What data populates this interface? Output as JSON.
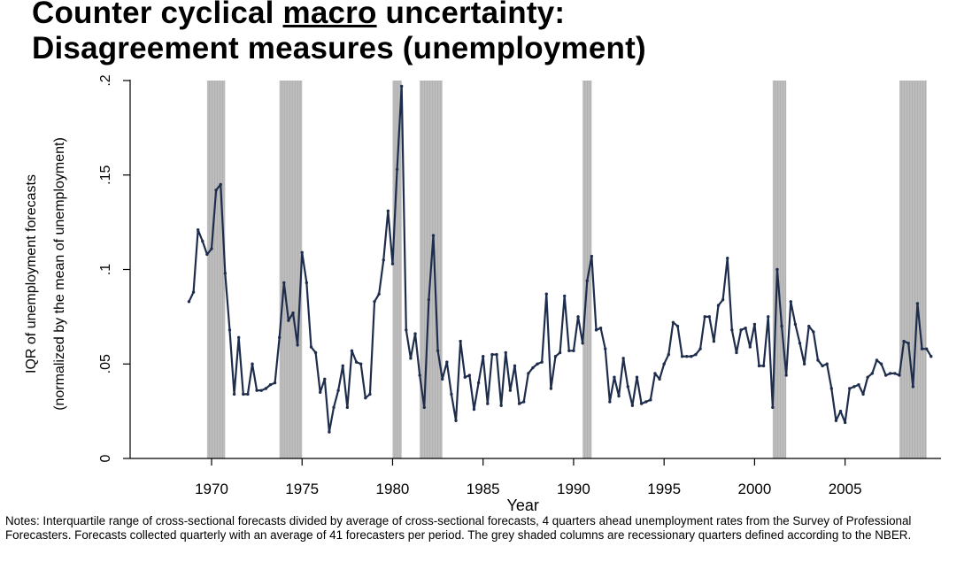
{
  "title": {
    "line1_before": "Counter cyclical ",
    "line1_underlined": "macro",
    "line1_after": " uncertainty:",
    "line2": "Disagreement measures (unemployment)"
  },
  "notes": "Notes: Interquartile range of cross-sectional forecasts divided by average of cross-sectional forecasts, 4 quarters ahead unemployment rates from the Survey of Professional Forecasters. Forecasts collected quarterly with an average of 41 forecasters per period. The grey shaded columns are recessionary quarters defined according to the NBER.",
  "chart_data": {
    "type": "line",
    "xlabel": "Year",
    "ylabel_line1": "IQR of unemployment forecasts",
    "ylabel_line2": "(normalized by the mean of unemployment)",
    "xlim": [
      1965.5,
      2010.3
    ],
    "ylim": [
      0,
      0.2
    ],
    "x_ticks": [
      1970,
      1975,
      1980,
      1985,
      1990,
      1995,
      2000,
      2005
    ],
    "x_tick_labels": [
      "1970",
      "1975",
      "1980",
      "1985",
      "1990",
      "1995",
      "2000",
      "2005"
    ],
    "y_ticks": [
      0,
      0.05,
      0.1,
      0.15,
      0.2
    ],
    "y_tick_labels": [
      "0",
      ".05",
      ".1",
      ".15",
      ".2"
    ],
    "grid": false,
    "line_color": "#1f2d4d",
    "shade_color": "#bdbdbd",
    "recessions": [
      [
        1969.75,
        1970.75
      ],
      [
        1973.75,
        1975.0
      ],
      [
        1980.0,
        1980.5
      ],
      [
        1981.5,
        1982.75
      ],
      [
        1990.5,
        1991.0
      ],
      [
        2001.0,
        2001.75
      ],
      [
        2008.0,
        2009.5
      ]
    ],
    "series": [
      {
        "points": [
          [
            1968.75,
            0.083
          ],
          [
            1969.0,
            0.088
          ],
          [
            1969.25,
            0.121
          ],
          [
            1969.5,
            0.115
          ],
          [
            1969.75,
            0.108
          ],
          [
            1970.0,
            0.111
          ],
          [
            1970.25,
            0.142
          ],
          [
            1970.5,
            0.145
          ],
          [
            1970.75,
            0.098
          ],
          [
            1971.0,
            0.068
          ],
          [
            1971.25,
            0.034
          ],
          [
            1971.5,
            0.064
          ],
          [
            1971.75,
            0.034
          ],
          [
            1972.0,
            0.034
          ],
          [
            1972.25,
            0.05
          ],
          [
            1972.5,
            0.036
          ],
          [
            1972.75,
            0.036
          ],
          [
            1973.0,
            0.037
          ],
          [
            1973.25,
            0.039
          ],
          [
            1973.5,
            0.04
          ],
          [
            1973.75,
            0.064
          ],
          [
            1974.0,
            0.093
          ],
          [
            1974.25,
            0.073
          ],
          [
            1974.5,
            0.077
          ],
          [
            1974.75,
            0.06
          ],
          [
            1975.0,
            0.109
          ],
          [
            1975.25,
            0.093
          ],
          [
            1975.5,
            0.059
          ],
          [
            1975.75,
            0.056
          ],
          [
            1976.0,
            0.035
          ],
          [
            1976.25,
            0.042
          ],
          [
            1976.5,
            0.014
          ],
          [
            1976.75,
            0.027
          ],
          [
            1977.0,
            0.036
          ],
          [
            1977.25,
            0.049
          ],
          [
            1977.5,
            0.027
          ],
          [
            1977.75,
            0.057
          ],
          [
            1978.0,
            0.051
          ],
          [
            1978.25,
            0.05
          ],
          [
            1978.5,
            0.032
          ],
          [
            1978.75,
            0.034
          ],
          [
            1979.0,
            0.083
          ],
          [
            1979.25,
            0.087
          ],
          [
            1979.5,
            0.105
          ],
          [
            1979.75,
            0.131
          ],
          [
            1980.0,
            0.103
          ],
          [
            1980.25,
            0.153
          ],
          [
            1980.5,
            0.197
          ],
          [
            1980.75,
            0.068
          ],
          [
            1981.0,
            0.053
          ],
          [
            1981.25,
            0.066
          ],
          [
            1981.5,
            0.044
          ],
          [
            1981.75,
            0.027
          ],
          [
            1982.0,
            0.084
          ],
          [
            1982.25,
            0.118
          ],
          [
            1982.5,
            0.057
          ],
          [
            1982.75,
            0.042
          ],
          [
            1983.0,
            0.051
          ],
          [
            1983.25,
            0.034
          ],
          [
            1983.5,
            0.02
          ],
          [
            1983.75,
            0.062
          ],
          [
            1984.0,
            0.043
          ],
          [
            1984.25,
            0.044
          ],
          [
            1984.5,
            0.026
          ],
          [
            1984.75,
            0.04
          ],
          [
            1985.0,
            0.054
          ],
          [
            1985.25,
            0.029
          ],
          [
            1985.5,
            0.055
          ],
          [
            1985.75,
            0.055
          ],
          [
            1986.0,
            0.028
          ],
          [
            1986.25,
            0.056
          ],
          [
            1986.5,
            0.036
          ],
          [
            1986.75,
            0.049
          ],
          [
            1987.0,
            0.029
          ],
          [
            1987.25,
            0.03
          ],
          [
            1987.5,
            0.045
          ],
          [
            1987.75,
            0.048
          ],
          [
            1988.0,
            0.05
          ],
          [
            1988.25,
            0.051
          ],
          [
            1988.5,
            0.087
          ],
          [
            1988.75,
            0.037
          ],
          [
            1989.0,
            0.054
          ],
          [
            1989.25,
            0.056
          ],
          [
            1989.5,
            0.086
          ],
          [
            1989.75,
            0.057
          ],
          [
            1990.0,
            0.057
          ],
          [
            1990.25,
            0.075
          ],
          [
            1990.5,
            0.061
          ],
          [
            1990.75,
            0.094
          ],
          [
            1991.0,
            0.107
          ],
          [
            1991.25,
            0.068
          ],
          [
            1991.5,
            0.069
          ],
          [
            1991.75,
            0.058
          ],
          [
            1992.0,
            0.03
          ],
          [
            1992.25,
            0.043
          ],
          [
            1992.5,
            0.033
          ],
          [
            1992.75,
            0.053
          ],
          [
            1993.0,
            0.038
          ],
          [
            1993.25,
            0.028
          ],
          [
            1993.5,
            0.043
          ],
          [
            1993.75,
            0.029
          ],
          [
            1994.0,
            0.03
          ],
          [
            1994.25,
            0.031
          ],
          [
            1994.5,
            0.045
          ],
          [
            1994.75,
            0.042
          ],
          [
            1995.0,
            0.05
          ],
          [
            1995.25,
            0.055
          ],
          [
            1995.5,
            0.072
          ],
          [
            1995.75,
            0.07
          ],
          [
            1996.0,
            0.054
          ],
          [
            1996.25,
            0.054
          ],
          [
            1996.5,
            0.054
          ],
          [
            1996.75,
            0.055
          ],
          [
            1997.0,
            0.058
          ],
          [
            1997.25,
            0.075
          ],
          [
            1997.5,
            0.075
          ],
          [
            1997.75,
            0.062
          ],
          [
            1998.0,
            0.081
          ],
          [
            1998.25,
            0.084
          ],
          [
            1998.5,
            0.106
          ],
          [
            1998.75,
            0.068
          ],
          [
            1999.0,
            0.056
          ],
          [
            1999.25,
            0.068
          ],
          [
            1999.5,
            0.069
          ],
          [
            1999.75,
            0.059
          ],
          [
            2000.0,
            0.071
          ],
          [
            2000.25,
            0.049
          ],
          [
            2000.5,
            0.049
          ],
          [
            2000.75,
            0.075
          ],
          [
            2001.0,
            0.027
          ],
          [
            2001.25,
            0.1
          ],
          [
            2001.5,
            0.07
          ],
          [
            2001.75,
            0.044
          ],
          [
            2002.0,
            0.083
          ],
          [
            2002.25,
            0.071
          ],
          [
            2002.5,
            0.061
          ],
          [
            2002.75,
            0.05
          ],
          [
            2003.0,
            0.07
          ],
          [
            2003.25,
            0.067
          ],
          [
            2003.5,
            0.052
          ],
          [
            2003.75,
            0.049
          ],
          [
            2004.0,
            0.05
          ],
          [
            2004.25,
            0.037
          ],
          [
            2004.5,
            0.02
          ],
          [
            2004.75,
            0.025
          ],
          [
            2005.0,
            0.019
          ],
          [
            2005.25,
            0.037
          ],
          [
            2005.5,
            0.038
          ],
          [
            2005.75,
            0.039
          ],
          [
            2006.0,
            0.034
          ],
          [
            2006.25,
            0.043
          ],
          [
            2006.5,
            0.045
          ],
          [
            2006.75,
            0.052
          ],
          [
            2007.0,
            0.05
          ],
          [
            2007.25,
            0.044
          ],
          [
            2007.5,
            0.045
          ],
          [
            2007.75,
            0.045
          ],
          [
            2008.0,
            0.044
          ],
          [
            2008.25,
            0.062
          ],
          [
            2008.5,
            0.061
          ],
          [
            2008.75,
            0.038
          ],
          [
            2009.0,
            0.082
          ],
          [
            2009.25,
            0.058
          ],
          [
            2009.5,
            0.058
          ],
          [
            2009.75,
            0.054
          ]
        ]
      }
    ]
  }
}
